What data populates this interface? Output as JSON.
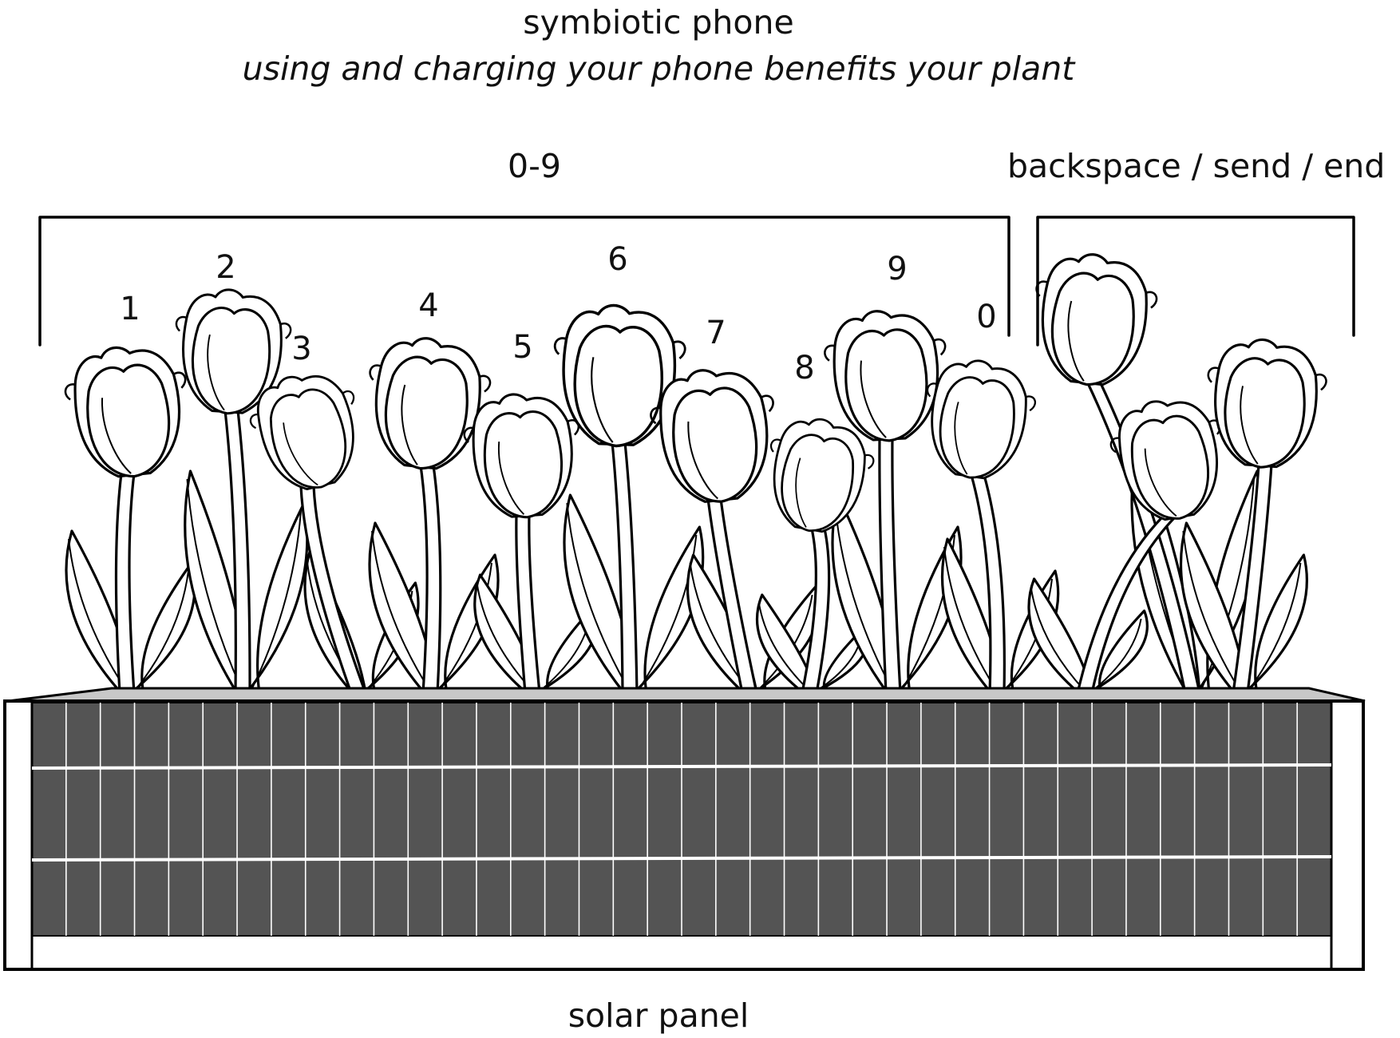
{
  "title": "symbiotic  phone",
  "subtitle": "using and charging your phone benefits your plant",
  "keys_label": "0-9",
  "controls_label": "backspace / send / end",
  "panel_label": "solar panel",
  "tulip_labels": [
    "1",
    "2",
    "3",
    "4",
    "5",
    "6",
    "7",
    "8",
    "9",
    "0"
  ],
  "colors": {
    "panel": "#545454",
    "panel_rim": "#c8c8c8",
    "line": "#000000",
    "background": "#ffffff"
  },
  "icons": [
    "tulip-icon",
    "solar-cell-icon"
  ]
}
